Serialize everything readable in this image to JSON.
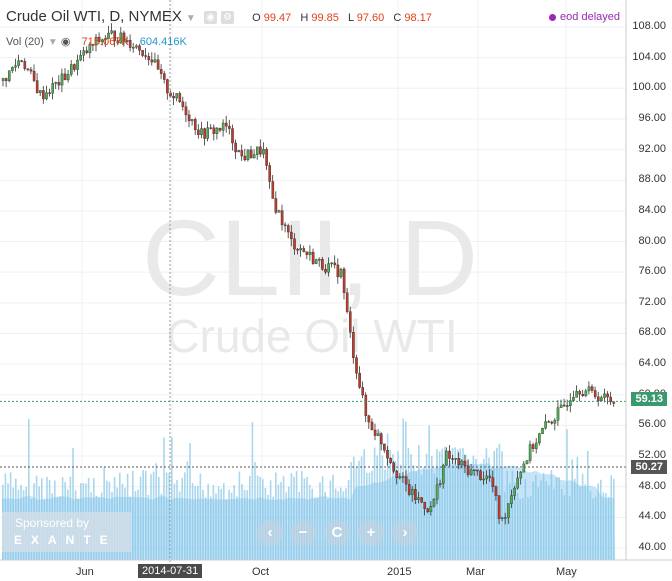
{
  "header": {
    "symbol_title": "Crude Oil WTI, D, NYMEX",
    "ohlc": {
      "o_label": "O",
      "o": "99.47",
      "h_label": "H",
      "h": "99.85",
      "l_label": "L",
      "l": "97.60",
      "c_label": "C",
      "c": "98.17"
    },
    "eod": "eod delayed"
  },
  "volume_legend": {
    "label": "Vol (20)",
    "v1": "715.067K",
    "v2": "604.416K"
  },
  "watermark": {
    "big": "CLII, D",
    "small": "Crude Oil WTI"
  },
  "sponsor": {
    "line1": "Sponsored by",
    "line2": "EXANTE"
  },
  "controls": [
    "‹",
    "−",
    "C",
    "+",
    "›"
  ],
  "y_axis": {
    "ticks": [
      "108.00",
      "104.00",
      "100.00",
      "96.00",
      "92.00",
      "88.00",
      "84.00",
      "80.00",
      "76.00",
      "72.00",
      "68.00",
      "64.00",
      "60.00",
      "56.00",
      "52.00",
      "48.00",
      "44.00",
      "40.00"
    ]
  },
  "x_axis": {
    "ticks": [
      "Jun",
      "2014-07-31",
      "Oct",
      "2015",
      "Mar",
      "May"
    ]
  },
  "price_labels": {
    "last": "59.13",
    "volume_level": "50.27"
  },
  "colors": {
    "up": "#4caf50",
    "down": "#e0421c",
    "candle_body_up": "#4caf50",
    "candle_body_down": "#c0392b",
    "volume": "#8ecae6",
    "volume_avg": "#7ec3ee",
    "last_line": "#3a9a6d",
    "vol_line": "#555555"
  },
  "chart_data": {
    "type": "candlestick",
    "ylim": [
      38,
      111
    ],
    "x": [
      "2014-05-01",
      "2014-06-01",
      "2014-07-01",
      "2014-07-31",
      "2014-09-01",
      "2014-10-01",
      "2014-11-01",
      "2014-12-01",
      "2015-01-01",
      "2015-02-01",
      "2015-03-01",
      "2015-04-01",
      "2015-05-01",
      "2015-06-01"
    ],
    "close": [
      100.5,
      103.0,
      104.5,
      97.5,
      93.0,
      84.0,
      76.0,
      62.0,
      48.0,
      50.0,
      45.0,
      55.0,
      59.5,
      59.13
    ],
    "last_close": 59.13,
    "volume_marker": 50.27
  }
}
